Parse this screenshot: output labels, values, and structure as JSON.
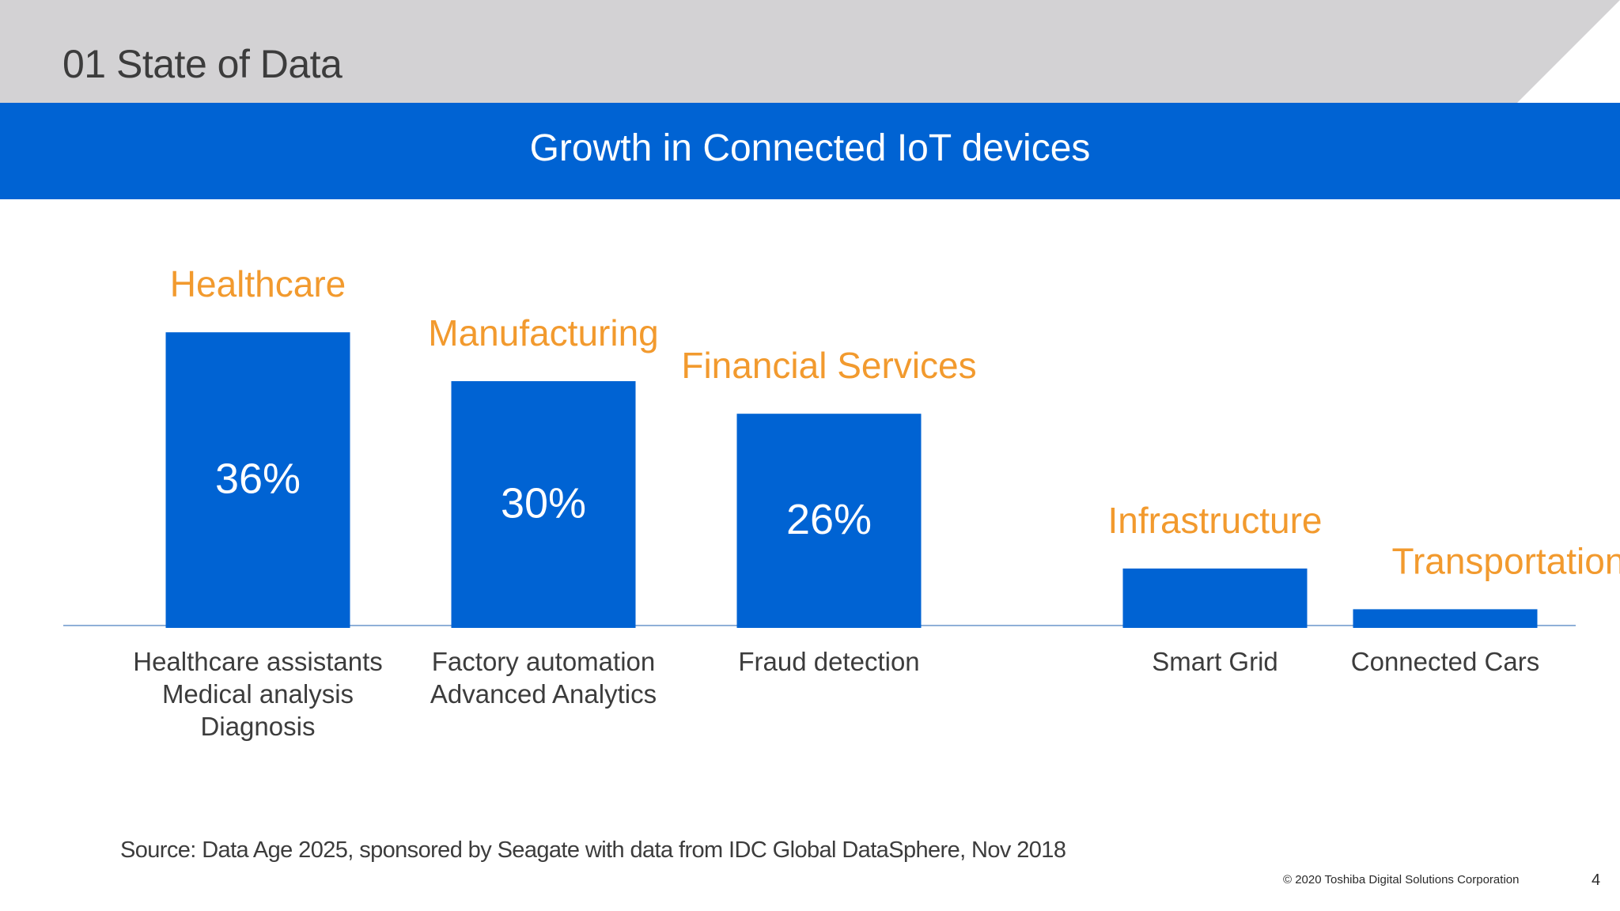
{
  "header": {
    "section_title": "01 State of Data"
  },
  "colors": {
    "band_gray": "#d3d2d4",
    "title_blue": "#0063d3",
    "bar_blue": "#0063d3",
    "category_orange": "#f29a2e",
    "axis_line": "#8fb0d8",
    "text_dark": "#3c3c3c"
  },
  "chart_data": {
    "type": "bar",
    "title": "Growth in Connected IoT devices",
    "categories": [
      "Healthcare",
      "Manufacturing",
      "Financial Services",
      "Infrastructure",
      "Transportation"
    ],
    "values": [
      36,
      30,
      26,
      7,
      2
    ],
    "value_labels": [
      "36%",
      "30%",
      "26%",
      "",
      ""
    ],
    "sublabels": [
      [
        "Healthcare assistants",
        "Medical analysis",
        "Diagnosis"
      ],
      [
        "Factory automation",
        "Advanced Analytics"
      ],
      [
        "Fraud detection"
      ],
      [
        "Smart Grid"
      ],
      [
        "Connected Cars"
      ]
    ],
    "xlabel": "",
    "ylabel": "",
    "unit": "%",
    "ylim": [
      0,
      40
    ],
    "grid": false,
    "legend": "none"
  },
  "footer": {
    "source": "Source: Data Age 2025, sponsored by Seagate with data from IDC Global DataSphere, Nov 2018",
    "copyright": "© 2020 Toshiba Digital Solutions Corporation",
    "page_number": "4"
  }
}
